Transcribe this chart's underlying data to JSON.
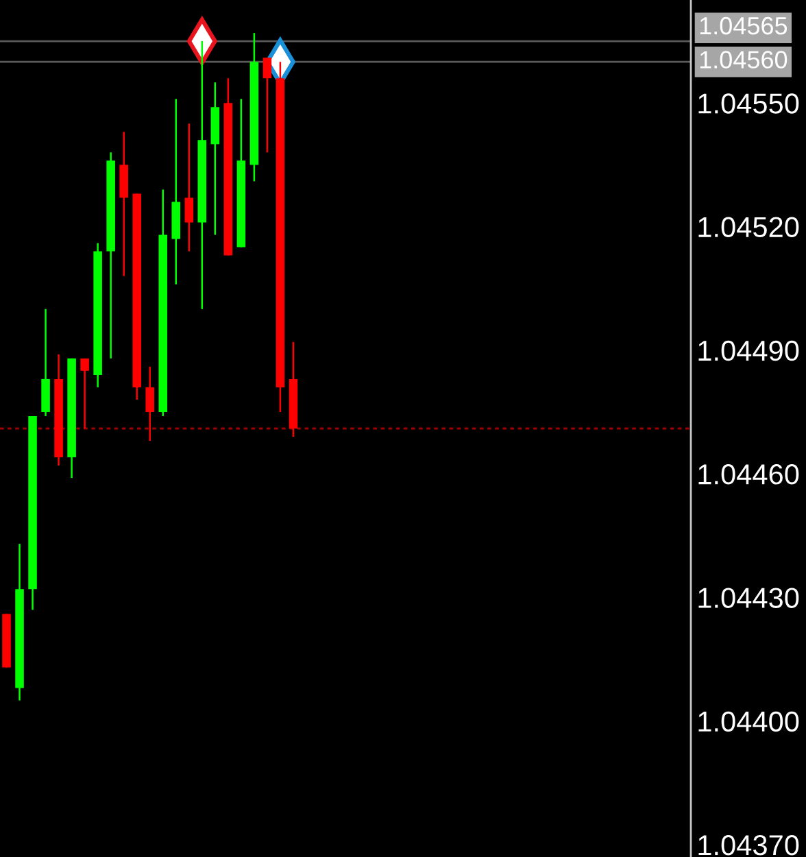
{
  "chart_data": {
    "type": "candlestick",
    "categories": [
      null,
      null,
      null,
      null,
      null,
      null,
      null,
      null,
      null,
      null,
      null,
      null,
      null,
      null,
      null,
      null,
      null,
      null,
      null,
      null,
      null,
      null,
      null,
      null,
      null,
      null,
      null,
      null,
      null,
      null,
      null,
      null,
      null,
      null,
      null,
      null,
      null,
      null,
      null,
      null,
      null,
      null,
      null,
      null,
      null,
      null,
      null,
      null,
      null,
      null,
      null,
      null,
      null
    ],
    "ohlc": [
      [
        1.04426,
        1.04426,
        1.04413,
        1.04413
      ],
      [
        1.04408,
        1.04443,
        1.04405,
        1.04432
      ],
      [
        1.04432,
        1.04474,
        1.04427,
        1.04474
      ],
      [
        1.04475,
        1.045,
        1.04474,
        1.04483
      ],
      [
        1.04483,
        1.04489,
        1.04462,
        1.04464
      ],
      [
        1.04464,
        1.04488,
        1.04459,
        1.04488
      ],
      [
        1.04488,
        1.04488,
        1.04471,
        1.04485
      ],
      [
        1.04484,
        1.04516,
        1.04481,
        1.04514
      ],
      [
        1.04514,
        1.04538,
        1.04488,
        1.04536
      ],
      [
        1.04535,
        1.04543,
        1.04508,
        1.04527
      ],
      [
        1.04528,
        1.04528,
        1.04478,
        1.04481
      ],
      [
        1.04481,
        1.04486,
        1.04468,
        1.04475
      ],
      [
        1.04475,
        1.04529,
        1.04474,
        1.04518
      ],
      [
        1.04517,
        1.04551,
        1.04506,
        1.04526
      ],
      [
        1.04527,
        1.04545,
        1.04514,
        1.04521
      ],
      [
        1.04521,
        1.04565,
        1.045,
        1.04541
      ],
      [
        1.0454,
        1.04555,
        1.04518,
        1.04549
      ],
      [
        1.0455,
        1.04556,
        1.04513,
        1.04513
      ],
      [
        1.04515,
        1.04551,
        1.04515,
        1.04536
      ],
      [
        1.04535,
        1.04567,
        1.04531,
        1.0456
      ],
      [
        1.04561,
        1.04561,
        1.04538,
        1.04556
      ],
      [
        1.04556,
        1.0456,
        1.04475,
        1.04481
      ],
      [
        1.04483,
        1.04492,
        1.04469,
        1.04471
      ],
      null,
      null,
      null,
      null,
      null,
      null,
      null,
      null,
      null,
      null,
      null,
      null,
      null,
      null,
      null,
      null,
      null,
      null,
      null,
      null,
      null,
      null,
      null,
      null,
      null,
      null,
      null,
      null,
      null,
      null
    ],
    "colors": [
      "#ff0000",
      "#00ff00",
      "#00ff00",
      "#00ff00",
      "#ff0000",
      "#00ff00",
      "#ff0000",
      "#00ff00",
      "#00ff00",
      "#ff0000",
      "#ff0000",
      "#ff0000",
      "#00ff00",
      "#00ff00",
      "#ff0000",
      "#00ff00",
      "#00ff00",
      "#ff0000",
      "#00ff00",
      "#00ff00",
      "#ff0000",
      "#ff0000",
      "#ff0000",
      null,
      null,
      null,
      null,
      null,
      null,
      null,
      null,
      null,
      null,
      null,
      null,
      null,
      null,
      null,
      null,
      null,
      null,
      null,
      null,
      null,
      null,
      null,
      null,
      null,
      null,
      null,
      null,
      null,
      null
    ],
    "series": [
      {
        "type": "scatter",
        "marker": "diamond",
        "color": "#e8141e",
        "values": [
          null,
          null,
          null,
          null,
          null,
          null,
          null,
          null,
          null,
          null,
          null,
          null,
          null,
          null,
          null,
          1.04565,
          null,
          null,
          null,
          null,
          null,
          null,
          null,
          null,
          null,
          null,
          null,
          null,
          null,
          null,
          null,
          null,
          null,
          null,
          null,
          null,
          null,
          null,
          null,
          null,
          null,
          null,
          null,
          null,
          null,
          null,
          null,
          null,
          null,
          null,
          null,
          null,
          null
        ]
      },
      {
        "type": "scatter",
        "marker": "diamond",
        "color": "#1a90d8",
        "values": [
          null,
          null,
          null,
          null,
          null,
          null,
          null,
          null,
          null,
          null,
          null,
          null,
          null,
          null,
          null,
          null,
          null,
          null,
          null,
          null,
          null,
          1.0456,
          null,
          null,
          null,
          null,
          null,
          null,
          null,
          null,
          null,
          null,
          null,
          null,
          null,
          null,
          null,
          null,
          null,
          null,
          null,
          null,
          null,
          null,
          null,
          null,
          null,
          null,
          null,
          null,
          null,
          null,
          null
        ]
      }
    ],
    "ylim": [
      1.04367,
      1.04575
    ],
    "yticks": [
      {
        "value": 1.0437,
        "label": "1.04370"
      },
      {
        "value": 1.044,
        "label": "1.04400"
      },
      {
        "value": 1.0443,
        "label": "1.04430"
      },
      {
        "value": 1.0446,
        "label": "1.04460"
      },
      {
        "value": 1.0449,
        "label": "1.04490"
      },
      {
        "value": 1.0452,
        "label": "1.04520"
      },
      {
        "value": 1.0455,
        "label": "1.04550"
      }
    ],
    "ref_lines": [
      {
        "axis": "y",
        "value": 1.04565,
        "label": "1.04565",
        "color": "#5a5a5a"
      },
      {
        "axis": "y",
        "value": 1.0456,
        "label": "1.04560",
        "color": "#5a5a5a"
      },
      {
        "axis": "y",
        "value": 1.04471,
        "color": "#a00000",
        "line_style": "dotted"
      }
    ],
    "tick_labels": "y"
  }
}
